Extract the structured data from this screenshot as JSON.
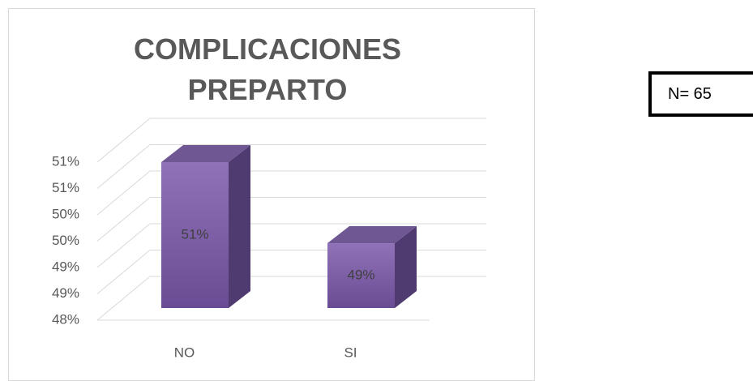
{
  "chart_data": {
    "type": "bar3d",
    "title": "COMPLICACIONES PREPARTO",
    "categories": [
      "NO",
      "SI"
    ],
    "values": [
      50.77,
      49.23
    ],
    "value_labels": [
      "51%",
      "49%"
    ],
    "color": "#7d5fa6",
    "ylim": [
      48,
      51
    ],
    "yticks": [
      {
        "value": 48,
        "label": "48%"
      },
      {
        "value": 48.5,
        "label": "49%"
      },
      {
        "value": 49,
        "label": "49%"
      },
      {
        "value": 49.5,
        "label": "50%"
      },
      {
        "value": 50,
        "label": "50%"
      },
      {
        "value": 50.5,
        "label": "51%"
      },
      {
        "value": 51,
        "label": "51%"
      }
    ],
    "grid": true
  },
  "note_box": {
    "text": "N= 65"
  }
}
